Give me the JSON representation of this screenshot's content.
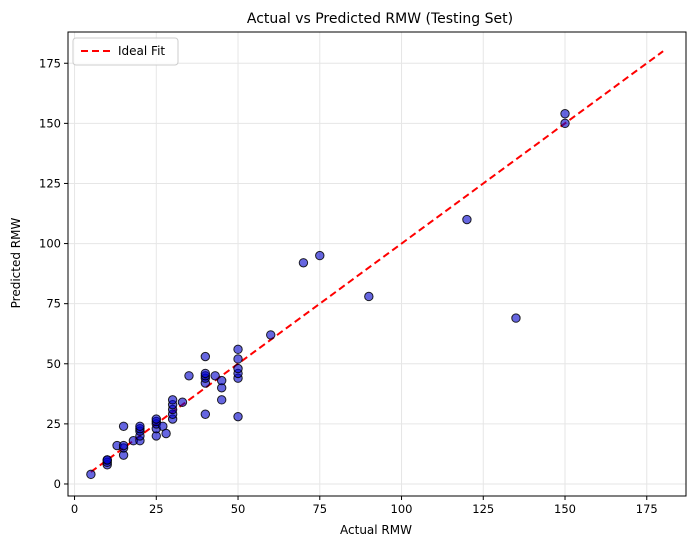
{
  "chart_data": {
    "type": "scatter",
    "title": "Actual vs Predicted RMW (Testing Set)",
    "xlabel": "Actual RMW",
    "ylabel": "Predicted RMW",
    "xlim": [
      -2,
      187
    ],
    "ylim": [
      -5,
      188
    ],
    "xticks": [
      0,
      25,
      50,
      75,
      100,
      125,
      150,
      175
    ],
    "yticks": [
      0,
      25,
      50,
      75,
      100,
      125,
      150,
      175
    ],
    "grid": true,
    "legend_position": "top-left",
    "series": [
      {
        "kind": "points",
        "color": "#0000cc",
        "points": [
          [
            5,
            4
          ],
          [
            10,
            8
          ],
          [
            10,
            9
          ],
          [
            10,
            10
          ],
          [
            10,
            10
          ],
          [
            13,
            16
          ],
          [
            15,
            12
          ],
          [
            15,
            15
          ],
          [
            15,
            16
          ],
          [
            15,
            24
          ],
          [
            18,
            18
          ],
          [
            20,
            18
          ],
          [
            20,
            20
          ],
          [
            20,
            22
          ],
          [
            20,
            23
          ],
          [
            20,
            24
          ],
          [
            25,
            20
          ],
          [
            25,
            23
          ],
          [
            25,
            25
          ],
          [
            25,
            26
          ],
          [
            25,
            27
          ],
          [
            27,
            24
          ],
          [
            28,
            21
          ],
          [
            30,
            27
          ],
          [
            30,
            29
          ],
          [
            30,
            31
          ],
          [
            30,
            33
          ],
          [
            30,
            35
          ],
          [
            33,
            34
          ],
          [
            35,
            45
          ],
          [
            40,
            29
          ],
          [
            40,
            42
          ],
          [
            40,
            44
          ],
          [
            40,
            45
          ],
          [
            40,
            46
          ],
          [
            40,
            53
          ],
          [
            43,
            45
          ],
          [
            45,
            35
          ],
          [
            45,
            40
          ],
          [
            45,
            43
          ],
          [
            50,
            28
          ],
          [
            50,
            44
          ],
          [
            50,
            46
          ],
          [
            50,
            48
          ],
          [
            50,
            52
          ],
          [
            50,
            56
          ],
          [
            60,
            62
          ],
          [
            70,
            92
          ],
          [
            75,
            95
          ],
          [
            90,
            78
          ],
          [
            120,
            110
          ],
          [
            135,
            69
          ],
          [
            150,
            150
          ],
          [
            150,
            154
          ]
        ]
      },
      {
        "kind": "line",
        "name": "Ideal Fit",
        "color": "#ff0000",
        "x": [
          5,
          180
        ],
        "y": [
          5,
          180
        ]
      }
    ]
  }
}
